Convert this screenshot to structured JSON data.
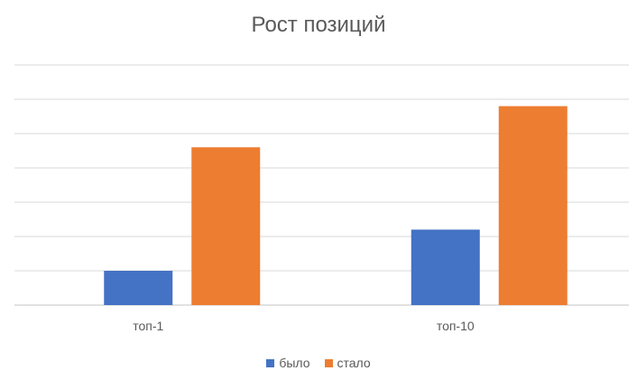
{
  "chart_data": {
    "type": "bar",
    "title": "Рост позиций",
    "categories": [
      "топ-1",
      "топ-10"
    ],
    "series": [
      {
        "name": "было",
        "color": "#4472C4",
        "values": [
          1,
          2.2
        ]
      },
      {
        "name": "стало",
        "color": "#ED7D31",
        "values": [
          4.6,
          5.8
        ]
      }
    ],
    "ylim": [
      0,
      7
    ],
    "y_gridlines": [
      0,
      1,
      2,
      3,
      4,
      5,
      6,
      7
    ],
    "y_tick_labels_shown": false,
    "grid": true,
    "legend_position": "bottom",
    "colors": {
      "grid": "#D9D9D9",
      "text": "#595959"
    }
  }
}
